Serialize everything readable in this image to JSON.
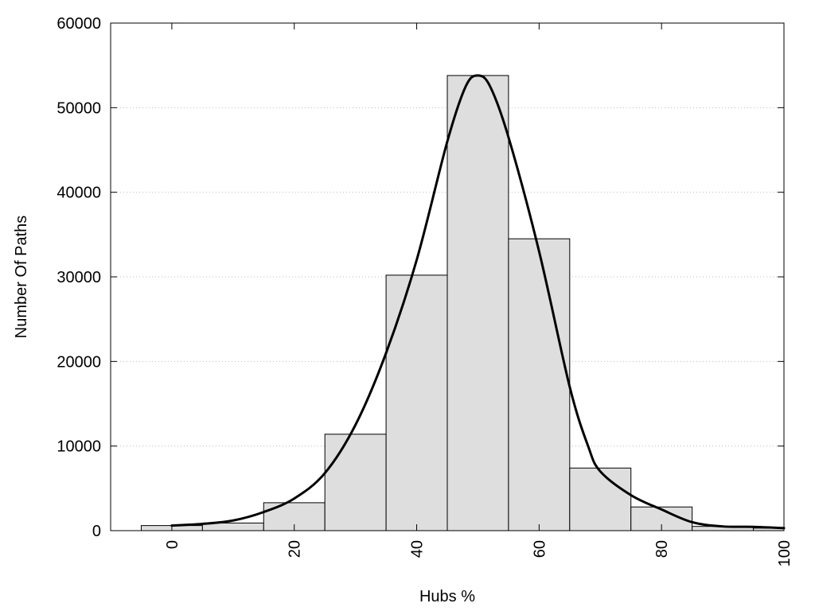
{
  "chart_data": {
    "type": "bar",
    "title": "",
    "xlabel": "Hubs %",
    "ylabel": "Number Of Paths",
    "xlim": [
      -10,
      100
    ],
    "ylim": [
      0,
      60000
    ],
    "grid": "horizontal-dotted",
    "x_ticks": [
      0,
      20,
      40,
      60,
      80,
      100
    ],
    "y_ticks": [
      0,
      10000,
      20000,
      30000,
      40000,
      50000,
      60000
    ],
    "bins": [
      {
        "center": 0,
        "value": 600
      },
      {
        "center": 10,
        "value": 900
      },
      {
        "center": 20,
        "value": 3300
      },
      {
        "center": 30,
        "value": 11400
      },
      {
        "center": 40,
        "value": 30200
      },
      {
        "center": 50,
        "value": 53800
      },
      {
        "center": 60,
        "value": 34500
      },
      {
        "center": 70,
        "value": 7400
      },
      {
        "center": 80,
        "value": 2800
      },
      {
        "center": 90,
        "value": 500
      },
      {
        "center": 100,
        "value": 300
      }
    ],
    "bin_width": 10,
    "curve": {
      "x": [
        0,
        5,
        10,
        15,
        20,
        25,
        30,
        35,
        40,
        45,
        48,
        50,
        52,
        55,
        60,
        65,
        68,
        70,
        75,
        80,
        85,
        90,
        95,
        100
      ],
      "y": [
        600,
        800,
        1200,
        2200,
        3800,
        6800,
        12500,
        21000,
        32000,
        46000,
        52500,
        53800,
        52500,
        46500,
        33000,
        17000,
        10000,
        7000,
        4200,
        2500,
        1000,
        500,
        450,
        300
      ]
    },
    "colors": {
      "bar_fill": "#dedede",
      "bar_stroke": "#000000",
      "curve": "#000000",
      "grid": "#bbbbbb"
    }
  }
}
